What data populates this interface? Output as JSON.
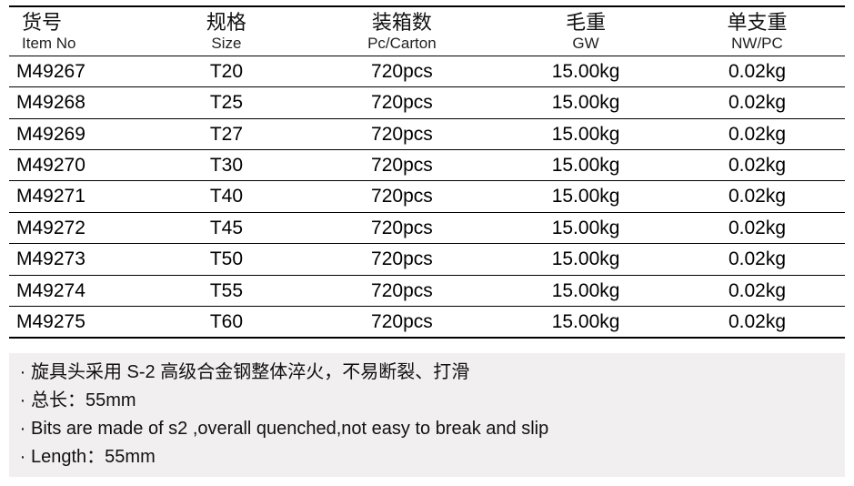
{
  "table": {
    "background_color": "#ffffff",
    "rule_color": "#000000",
    "top_rule_width": 2,
    "row_rule_width": 1,
    "header_cn_fontsize": 22,
    "header_en_fontsize": 17,
    "cell_fontsize": 21,
    "columns": [
      {
        "cn": "货号",
        "en": "Item No",
        "align": "left",
        "width_pct": 17
      },
      {
        "cn": "规格",
        "en": "Size",
        "align": "center",
        "width_pct": 18
      },
      {
        "cn": "装箱数",
        "en": "Pc/Carton",
        "align": "center",
        "width_pct": 24
      },
      {
        "cn": "毛重",
        "en": "GW",
        "align": "center",
        "width_pct": 20
      },
      {
        "cn": "单支重",
        "en": "NW/PC",
        "align": "center",
        "width_pct": 21
      }
    ],
    "rows": [
      [
        "M49267",
        "T20",
        "720pcs",
        "15.00kg",
        "0.02kg"
      ],
      [
        "M49268",
        "T25",
        "720pcs",
        "15.00kg",
        "0.02kg"
      ],
      [
        "M49269",
        "T27",
        "720pcs",
        "15.00kg",
        "0.02kg"
      ],
      [
        "M49270",
        "T30",
        "720pcs",
        "15.00kg",
        "0.02kg"
      ],
      [
        "M49271",
        "T40",
        "720pcs",
        "15.00kg",
        "0.02kg"
      ],
      [
        "M49272",
        "T45",
        "720pcs",
        "15.00kg",
        "0.02kg"
      ],
      [
        "M49273",
        "T50",
        "720pcs",
        "15.00kg",
        "0.02kg"
      ],
      [
        "M49274",
        "T55",
        "720pcs",
        "15.00kg",
        "0.02kg"
      ],
      [
        "M49275",
        "T60",
        "720pcs",
        "15.00kg",
        "0.02kg"
      ]
    ]
  },
  "notes": {
    "background_color": "#f1eff0",
    "fontsize": 20,
    "bullet": "·",
    "lines": [
      "旋具头采用 S-2 高级合金钢整体淬火，不易断裂、打滑",
      "总长：55mm",
      "Bits are made of s2 ,overall quenched,not easy to break and slip",
      "Length：55mm"
    ]
  }
}
